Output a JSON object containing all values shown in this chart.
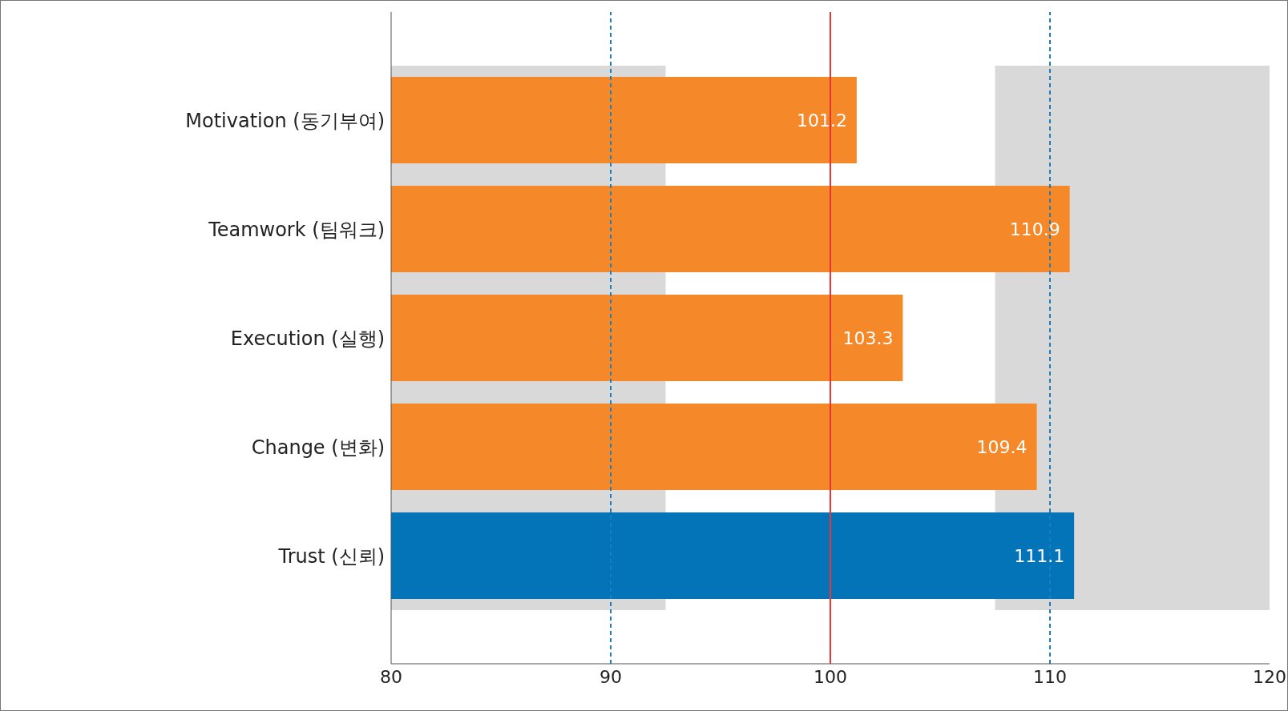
{
  "chart_data": {
    "type": "bar",
    "orientation": "horizontal",
    "categories": [
      "Motivation (동기부여)",
      "Teamwork (팀워크)",
      "Execution (실행)",
      "Change (변화)",
      "Trust (신뢰)"
    ],
    "values": [
      101.2,
      110.9,
      103.3,
      109.4,
      111.1
    ],
    "colors": [
      "#f5892a",
      "#f5892a",
      "#f5892a",
      "#f5892a",
      "#0474b8"
    ],
    "xlim": [
      80,
      120
    ],
    "xticks": [
      80,
      90,
      100,
      110,
      120
    ],
    "grid": false,
    "data_labels": true,
    "bands": [
      {
        "axis": "x",
        "from": 80,
        "to": 92.5,
        "color": "#d9d9d9"
      },
      {
        "axis": "x",
        "from": 107.5,
        "to": 120,
        "color": "#d9d9d9"
      }
    ],
    "ref_lines": [
      {
        "axis": "x",
        "value": 90,
        "color": "#1a7fc1",
        "line_style": "dashed"
      },
      {
        "axis": "x",
        "value": 100,
        "color": "#ee3333",
        "line_style": "solid"
      },
      {
        "axis": "x",
        "value": 110,
        "color": "#1a7fc1",
        "line_style": "dashed"
      }
    ]
  }
}
